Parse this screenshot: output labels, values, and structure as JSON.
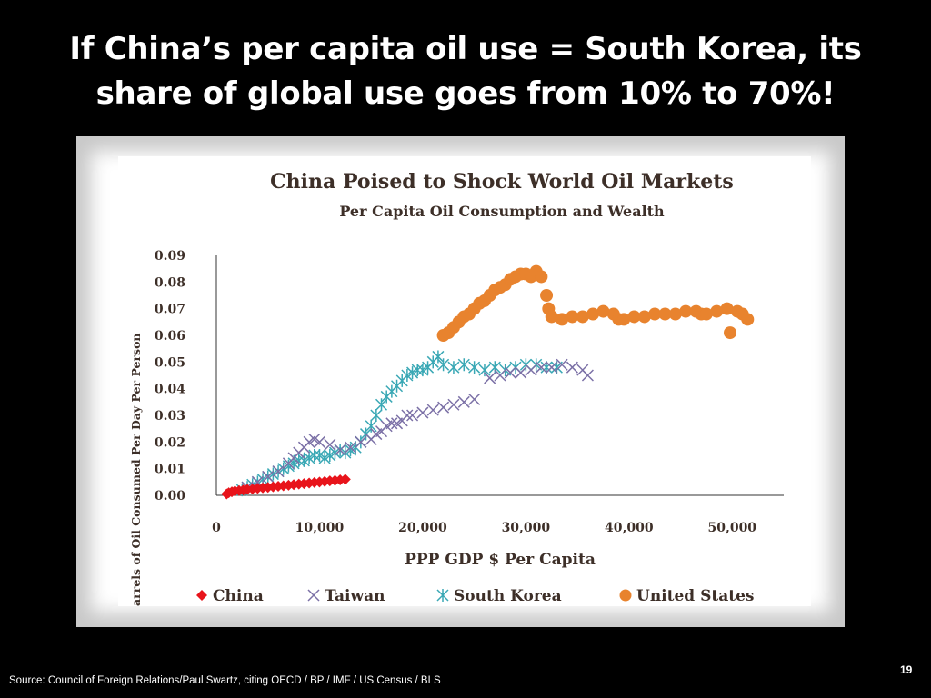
{
  "slide": {
    "title_line1": "If China’s per capita oil use = South Korea, its",
    "title_line2": "share of global use goes from 10% to 70%!",
    "source": "Source: Council of Foreign Relations/Paul Swartz, citing OECD / BP / IMF / US Census / BLS",
    "page_number": "19"
  },
  "chart_data": {
    "type": "scatter",
    "title": "China Poised to Shock World Oil Markets",
    "subtitle": "Per Capita Oil Consumption and Wealth",
    "xlabel": "PPP GDP $ Per Capita",
    "ylabel": "Barrels of Oil Consumed Per Day Per Person",
    "xlim": [
      0,
      55000
    ],
    "ylim": [
      0,
      0.09
    ],
    "xticks": [
      0,
      10000,
      20000,
      30000,
      40000,
      50000
    ],
    "xtick_labels": [
      "0",
      "10,000",
      "20,000",
      "30,000",
      "40,000",
      "50,000"
    ],
    "yticks": [
      0,
      0.01,
      0.02,
      0.03,
      0.04,
      0.05,
      0.06,
      0.07,
      0.08,
      0.09
    ],
    "ytick_labels": [
      "0.00",
      "0.01",
      "0.02",
      "0.03",
      "0.04",
      "0.05",
      "0.06",
      "0.07",
      "0.08",
      "0.09"
    ],
    "legend_position": "bottom",
    "grid": false,
    "series": [
      {
        "name": "China",
        "marker": "diamond",
        "color": "#e8141b",
        "x": [
          1000,
          1200,
          1500,
          1800,
          2200,
          2600,
          3000,
          3500,
          4000,
          4500,
          5000,
          5500,
          6000,
          6500,
          7000,
          7500,
          8000,
          8500,
          9000,
          9500,
          10000,
          10500,
          11000,
          11500,
          12000,
          12500
        ],
        "y": [
          0.0005,
          0.001,
          0.0013,
          0.0016,
          0.0018,
          0.002,
          0.0022,
          0.0024,
          0.0026,
          0.0028,
          0.003,
          0.0032,
          0.0034,
          0.0036,
          0.0038,
          0.004,
          0.0042,
          0.0044,
          0.0046,
          0.0048,
          0.005,
          0.0052,
          0.0054,
          0.0056,
          0.0058,
          0.006
        ]
      },
      {
        "name": "Taiwan",
        "marker": "x",
        "color": "#7b70a6",
        "x": [
          3000,
          4000,
          5000,
          6000,
          7000,
          7500,
          8000,
          8500,
          9000,
          9500,
          10000,
          11000,
          12000,
          13000,
          14000,
          15000,
          15500,
          16000,
          16500,
          17000,
          17500,
          18000,
          18500,
          19000,
          20000,
          21000,
          22000,
          23000,
          24000,
          25000,
          26500,
          27500,
          28500,
          29500,
          30500,
          31500,
          32500,
          33500,
          34500,
          35500,
          36000
        ],
        "y": [
          0.003,
          0.005,
          0.007,
          0.009,
          0.012,
          0.014,
          0.016,
          0.018,
          0.02,
          0.021,
          0.02,
          0.019,
          0.017,
          0.018,
          0.02,
          0.021,
          0.023,
          0.024,
          0.026,
          0.027,
          0.027,
          0.028,
          0.03,
          0.03,
          0.031,
          0.032,
          0.033,
          0.034,
          0.035,
          0.036,
          0.044,
          0.045,
          0.046,
          0.046,
          0.047,
          0.048,
          0.048,
          0.049,
          0.048,
          0.047,
          0.045
        ]
      },
      {
        "name": "South Korea",
        "marker": "asterisk",
        "color": "#3aa8b5",
        "x": [
          2500,
          3000,
          3500,
          4000,
          4500,
          5000,
          5500,
          6000,
          6500,
          7000,
          7500,
          8000,
          8500,
          9000,
          9500,
          10000,
          10500,
          11000,
          11500,
          12000,
          12500,
          13000,
          13500,
          14000,
          14500,
          15000,
          15500,
          16000,
          16500,
          17000,
          17500,
          18000,
          18500,
          19000,
          19500,
          20000,
          20500,
          21000,
          21500,
          22000,
          23000,
          24000,
          25000,
          26000,
          27000,
          28000,
          29000,
          30000,
          31000,
          32000,
          33000
        ],
        "y": [
          0.002,
          0.003,
          0.004,
          0.005,
          0.006,
          0.007,
          0.008,
          0.009,
          0.01,
          0.011,
          0.012,
          0.013,
          0.013,
          0.014,
          0.015,
          0.015,
          0.014,
          0.015,
          0.016,
          0.017,
          0.016,
          0.017,
          0.018,
          0.02,
          0.023,
          0.026,
          0.03,
          0.034,
          0.037,
          0.039,
          0.041,
          0.043,
          0.045,
          0.046,
          0.047,
          0.047,
          0.048,
          0.05,
          0.052,
          0.049,
          0.048,
          0.049,
          0.048,
          0.047,
          0.048,
          0.047,
          0.048,
          0.049,
          0.049,
          0.048,
          0.048
        ]
      },
      {
        "name": "United States",
        "marker": "circle",
        "color": "#e8832e",
        "x": [
          22000,
          22500,
          23000,
          23500,
          24000,
          24500,
          25000,
          25500,
          26000,
          26500,
          27000,
          27500,
          28000,
          28500,
          29000,
          29500,
          30000,
          30500,
          31000,
          31500,
          32000,
          32200,
          32500,
          33500,
          34500,
          35500,
          36500,
          37500,
          38500,
          39000,
          39500,
          40500,
          41500,
          42500,
          43500,
          44500,
          45500,
          46500,
          47000,
          47500,
          48500,
          49500,
          49800,
          50500,
          51000,
          51500
        ],
        "y": [
          0.06,
          0.061,
          0.063,
          0.065,
          0.067,
          0.068,
          0.07,
          0.072,
          0.073,
          0.075,
          0.077,
          0.078,
          0.079,
          0.081,
          0.082,
          0.083,
          0.083,
          0.082,
          0.084,
          0.082,
          0.075,
          0.07,
          0.067,
          0.066,
          0.067,
          0.067,
          0.068,
          0.069,
          0.068,
          0.066,
          0.066,
          0.067,
          0.067,
          0.068,
          0.068,
          0.068,
          0.069,
          0.069,
          0.068,
          0.068,
          0.069,
          0.07,
          0.061,
          0.069,
          0.068,
          0.066
        ]
      }
    ]
  }
}
